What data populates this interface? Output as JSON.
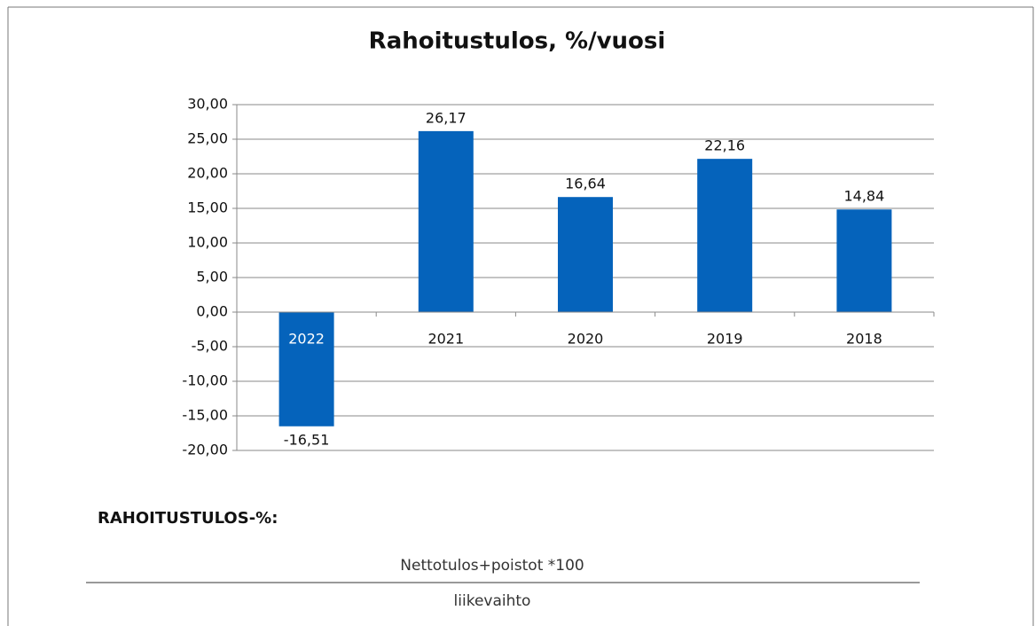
{
  "chart_data": {
    "type": "bar",
    "title": "Rahoitustulos, %/vuosi",
    "categories": [
      "2022",
      "2021",
      "2020",
      "2019",
      "2018"
    ],
    "values": [
      -16.51,
      26.17,
      16.64,
      22.16,
      14.84
    ],
    "value_labels": [
      "-16,51",
      "26,17",
      "16,64",
      "22,16",
      "14,84"
    ],
    "color": "#0563bb",
    "ylim": [
      -20,
      30
    ],
    "yticks": [
      {
        "value": -20,
        "label": "-20,00"
      },
      {
        "value": -15,
        "label": "-15,00"
      },
      {
        "value": -10,
        "label": "-10,00"
      },
      {
        "value": -5,
        "label": "-5,00"
      },
      {
        "value": 0,
        "label": "0,00"
      },
      {
        "value": 5,
        "label": "5,00"
      },
      {
        "value": 10,
        "label": "10,00"
      },
      {
        "value": 15,
        "label": "15,00"
      },
      {
        "value": 20,
        "label": "20,00"
      },
      {
        "value": 25,
        "label": "25,00"
      },
      {
        "value": 30,
        "label": "30,00"
      }
    ],
    "grid": true
  },
  "formula": {
    "heading": "RAHOITUSTULOS-%:",
    "numerator": "Nettotulos+poistot *100",
    "denominator": "liikevaihto"
  }
}
